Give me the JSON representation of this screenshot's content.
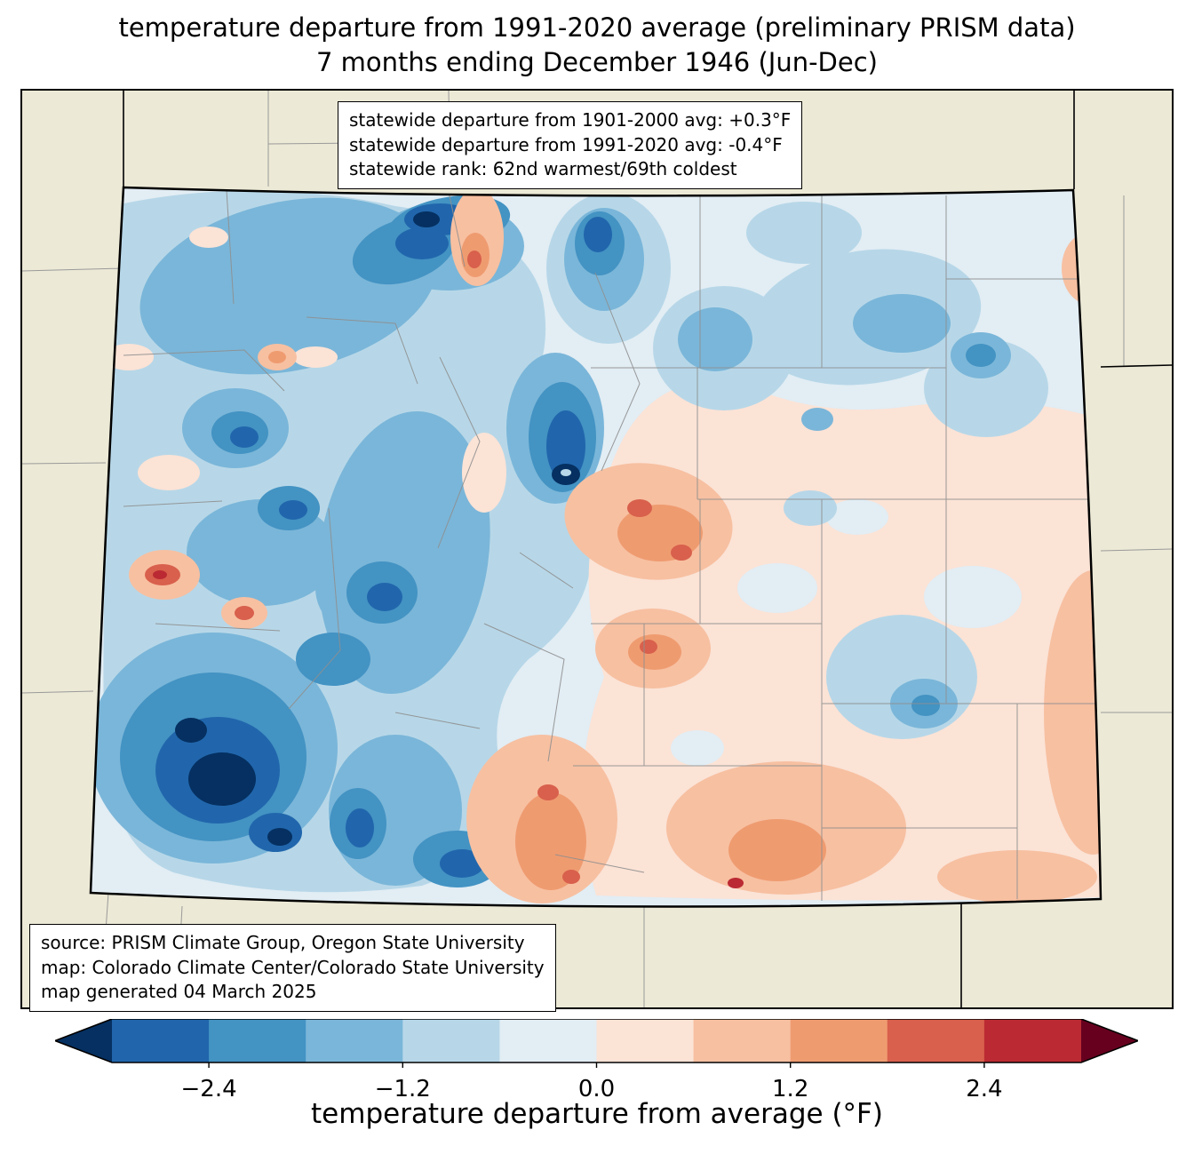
{
  "title": {
    "line1": "temperature departure from 1991-2020 average (preliminary PRISM data)",
    "line2": "7 months ending December 1946 (Jun-Dec)"
  },
  "stats_box": {
    "lines": [
      "statewide departure from 1901-2000 avg: +0.3°F",
      "statewide departure from 1991-2020 avg: -0.4°F",
      "statewide rank: 62nd warmest/69th coldest"
    ]
  },
  "source_box": {
    "lines": [
      "source: PRISM Climate Group, Oregon State University",
      "map: Colorado Climate Center/Colorado State University",
      "map generated 04 March 2025"
    ]
  },
  "colorbar": {
    "label": "temperature departure from average (°F)",
    "ticks": [
      "−2.4",
      "−1.2",
      "0.0",
      "1.2",
      "2.4"
    ],
    "tick_values": [
      -2.4,
      -1.2,
      0.0,
      1.2,
      2.4
    ],
    "range": [
      -3.0,
      3.0
    ],
    "colors": [
      "#053061",
      "#2166ac",
      "#4393c3",
      "#7ab6d9",
      "#b7d7e8",
      "#e2edf4",
      "#fbe3d6",
      "#f7c0a1",
      "#ef9b70",
      "#d8604c",
      "#bb2a33",
      "#67001f"
    ]
  },
  "map": {
    "region": "Colorado",
    "background_color": "#ece9d6",
    "county_line_color": "#8f8f8f",
    "state_border_color": "#000000"
  }
}
